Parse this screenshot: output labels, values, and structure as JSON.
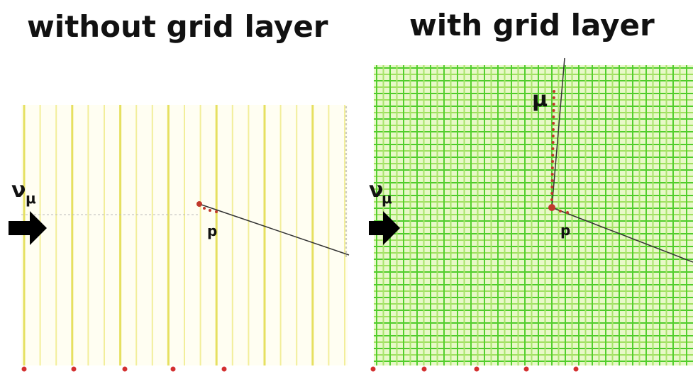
{
  "panels": [
    {
      "title": "without grid layer",
      "neutrino": "ν",
      "neutrino_sub": "μ",
      "proton": "p"
    },
    {
      "title": "with grid layer",
      "neutrino": "ν",
      "neutrino_sub": "μ",
      "proton": "p",
      "muon": "μ"
    }
  ]
}
